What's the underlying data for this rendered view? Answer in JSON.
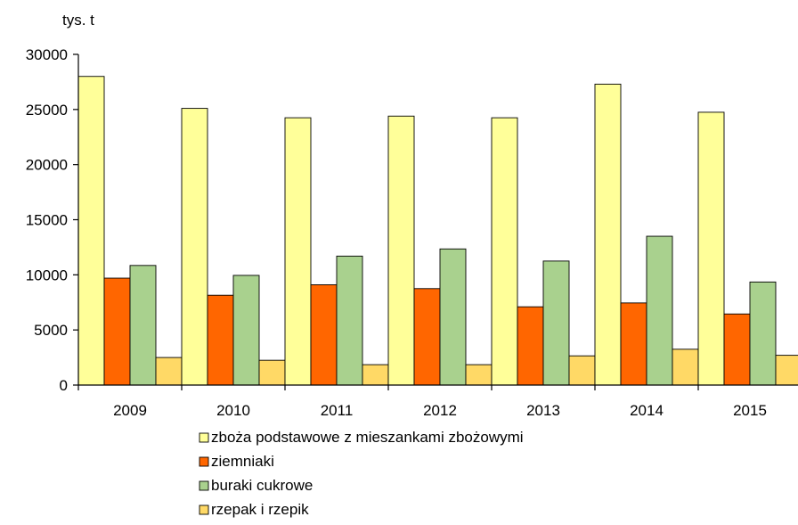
{
  "chart_data": {
    "type": "bar",
    "unit_label": "tys. t",
    "categories": [
      "2009",
      "2010",
      "2011",
      "2012",
      "2013",
      "2014",
      "2015"
    ],
    "series": [
      {
        "name": "zboża podstawowe z mieszankami zbożowymi",
        "color": "#FFFF99",
        "values": [
          28000,
          25100,
          24250,
          24400,
          24250,
          27300,
          24750
        ]
      },
      {
        "name": "ziemniaki",
        "color": "#FF6600",
        "values": [
          9700,
          8150,
          9100,
          8750,
          7100,
          7450,
          6450
        ]
      },
      {
        "name": "buraki cukrowe",
        "color": "#A9D18E",
        "values": [
          10850,
          9950,
          11700,
          12350,
          11250,
          13500,
          9350
        ]
      },
      {
        "name": "rzepak i rzepik",
        "color": "#FFD966",
        "values": [
          2500,
          2250,
          1850,
          1850,
          2650,
          3250,
          2700
        ]
      }
    ],
    "y_ticks": [
      "0",
      "5000",
      "10000",
      "15000",
      "20000",
      "25000",
      "30000"
    ],
    "ylim": [
      0,
      30000
    ],
    "grid": false,
    "legend_position": "bottom"
  }
}
